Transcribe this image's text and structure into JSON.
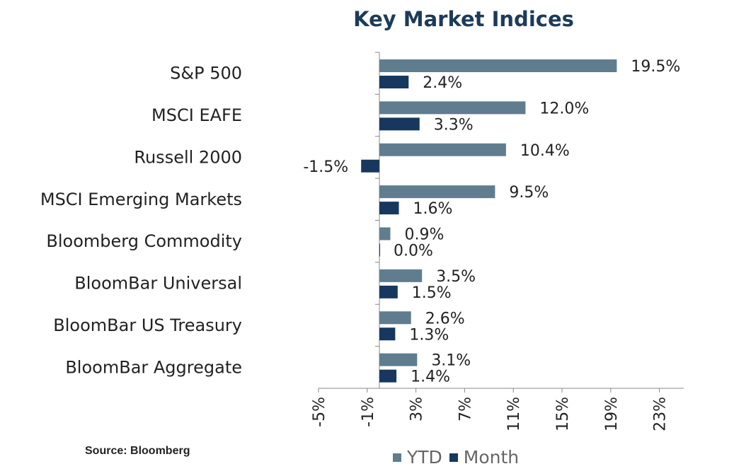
{
  "chart_data": {
    "type": "bar",
    "orientation": "horizontal",
    "title": "Key Market Indices",
    "categories": [
      "S&P 500",
      "MSCI EAFE",
      "Russell 2000",
      "MSCI Emerging Markets",
      "Bloomberg Commodity",
      "BloomBar Universal",
      "BloomBar US Treasury",
      "BloomBar Aggregate"
    ],
    "series": [
      {
        "name": "YTD",
        "values": [
          19.5,
          12.0,
          10.4,
          9.5,
          0.9,
          3.5,
          2.6,
          3.1
        ],
        "labels": [
          "19.5%",
          "12.0%",
          "10.4%",
          "9.5%",
          "0.9%",
          "3.5%",
          "2.6%",
          "3.1%"
        ],
        "color": "#607d8f"
      },
      {
        "name": "Month",
        "values": [
          2.4,
          3.3,
          -1.5,
          1.6,
          0.0,
          1.5,
          1.3,
          1.4
        ],
        "labels": [
          "2.4%",
          "3.3%",
          "-1.5%",
          "1.6%",
          "0.0%",
          "1.5%",
          "1.3%",
          "1.4%"
        ],
        "color": "#17375e"
      }
    ],
    "xlim": [
      -5,
      25
    ],
    "xticks": [
      -5,
      -1,
      3,
      7,
      11,
      15,
      19,
      23
    ],
    "xtick_labels": [
      "-5%",
      "-1%",
      "3%",
      "7%",
      "11%",
      "15%",
      "19%",
      "23%"
    ],
    "grid": false,
    "legend_position": "bottom"
  },
  "source": "Source: Bloomberg"
}
